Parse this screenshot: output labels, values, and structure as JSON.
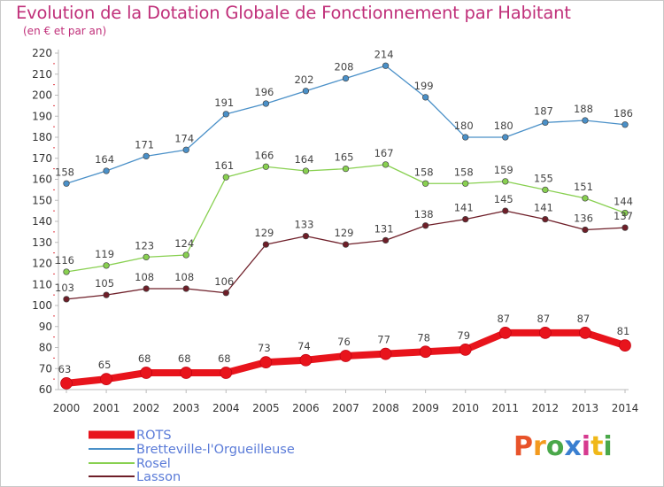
{
  "title": "Evolution de la Dotation Globale de Fonctionnement par Habitant",
  "subtitle": "(en € et par an)",
  "logo": {
    "text": "Proxiti",
    "colors": [
      "#e8532a",
      "#f39a1e",
      "#4aa84a",
      "#3a7fd0",
      "#d63a8f",
      "#f0b818",
      "#4aa84a"
    ]
  },
  "chart_data": {
    "type": "line",
    "title": "Evolution de la Dotation Globale de Fonctionnement par Habitant",
    "subtitle": "(en € et par an)",
    "x": [
      "2000",
      "2001",
      "2002",
      "2003",
      "2004",
      "2005",
      "2006",
      "2007",
      "2008",
      "2009",
      "2010",
      "2011",
      "2012",
      "2013",
      "2014"
    ],
    "yticks": [
      60,
      70,
      80,
      90,
      100,
      110,
      120,
      130,
      140,
      150,
      160,
      170,
      180,
      190,
      200,
      210,
      220
    ],
    "ylim": [
      60,
      220
    ],
    "grid": false,
    "legend_position": "bottom-left",
    "series": [
      {
        "name": "ROTS",
        "color": "#e8141c",
        "values": [
          63,
          65,
          68,
          68,
          68,
          73,
          74,
          76,
          77,
          78,
          79,
          87,
          87,
          87,
          81
        ]
      },
      {
        "name": "Bretteville-l'Orgueilleuse",
        "color": "#4a90c8",
        "values": [
          158,
          164,
          171,
          174,
          191,
          196,
          202,
          208,
          214,
          199,
          180,
          180,
          187,
          188,
          186
        ]
      },
      {
        "name": "Rosel",
        "color": "#88d050",
        "values": [
          116,
          119,
          123,
          124,
          161,
          166,
          164,
          165,
          167,
          158,
          158,
          159,
          155,
          151,
          144
        ]
      },
      {
        "name": "Lasson",
        "color": "#6e1e28",
        "values": [
          103,
          105,
          108,
          108,
          106,
          129,
          133,
          129,
          131,
          138,
          141,
          145,
          141,
          136,
          137
        ]
      }
    ]
  }
}
